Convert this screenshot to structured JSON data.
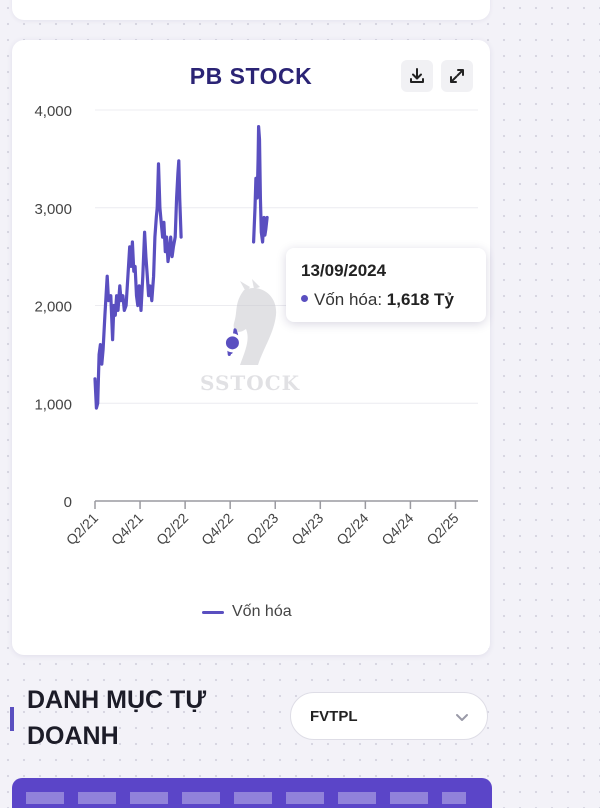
{
  "chart_data": {
    "type": "line",
    "title": "PB STOCK",
    "xlabel": "",
    "ylabel": "",
    "ylim": [
      0,
      4000
    ],
    "y_ticks": [
      "0",
      "1,000",
      "2,000",
      "3,000",
      "4,000"
    ],
    "y_tick_values": [
      0,
      1000,
      2000,
      3000,
      4000
    ],
    "x_ticks": [
      "Q2/21",
      "Q4/21",
      "Q2/22",
      "Q4/22",
      "Q2/23",
      "Q4/23",
      "Q2/24",
      "Q4/24",
      "Q2/25"
    ],
    "grid": true,
    "legend_position": "bottom",
    "series": [
      {
        "name": "Vốn hóa",
        "color": "#5a4fc0",
        "segments": [
          [
            [
              0.0,
              1250
            ],
            [
              0.03,
              950
            ],
            [
              0.06,
              1000
            ],
            [
              0.09,
              1500
            ],
            [
              0.12,
              1600
            ],
            [
              0.15,
              1400
            ],
            [
              0.18,
              1550
            ],
            [
              0.22,
              1900
            ],
            [
              0.27,
              2300
            ],
            [
              0.3,
              2050
            ],
            [
              0.35,
              2100
            ],
            [
              0.39,
              1650
            ],
            [
              0.42,
              2000
            ],
            [
              0.45,
              1900
            ],
            [
              0.48,
              2100
            ],
            [
              0.51,
              1950
            ],
            [
              0.55,
              2200
            ],
            [
              0.58,
              2050
            ],
            [
              0.62,
              2100
            ],
            [
              0.65,
              1950
            ],
            [
              0.69,
              2000
            ],
            [
              0.73,
              2300
            ],
            [
              0.77,
              2600
            ],
            [
              0.8,
              2400
            ],
            [
              0.83,
              2650
            ],
            [
              0.86,
              2350
            ],
            [
              0.89,
              2400
            ],
            [
              0.92,
              2100
            ],
            [
              0.95,
              2000
            ],
            [
              0.98,
              2200
            ],
            [
              1.02,
              1950
            ],
            [
              1.06,
              2300
            ],
            [
              1.1,
              2750
            ],
            [
              1.13,
              2500
            ],
            [
              1.16,
              2300
            ],
            [
              1.19,
              2100
            ],
            [
              1.22,
              2200
            ],
            [
              1.26,
              2050
            ],
            [
              1.3,
              2300
            ],
            [
              1.33,
              2700
            ],
            [
              1.36,
              2900
            ],
            [
              1.38,
              3000
            ],
            [
              1.41,
              3450
            ],
            [
              1.44,
              3000
            ],
            [
              1.47,
              2850
            ],
            [
              1.5,
              2700
            ],
            [
              1.53,
              2850
            ],
            [
              1.56,
              2550
            ],
            [
              1.59,
              2700
            ],
            [
              1.62,
              2450
            ],
            [
              1.65,
              2550
            ],
            [
              1.68,
              2700
            ],
            [
              1.71,
              2500
            ],
            [
              1.74,
              2600
            ],
            [
              1.78,
              2700
            ],
            [
              1.81,
              3100
            ],
            [
              1.84,
              3350
            ],
            [
              1.86,
              3480
            ],
            [
              1.88,
              3100
            ],
            [
              1.91,
              2700
            ]
          ],
          [
            [
              2.96,
              1600
            ],
            [
              2.98,
              1500
            ],
            [
              3.0,
              1580
            ],
            [
              3.02,
              1520
            ],
            [
              3.05,
              1620
            ],
            [
              3.08,
              1650
            ],
            [
              3.11,
              1750
            ],
            [
              3.14,
              1700
            ]
          ],
          [
            [
              3.52,
              2650
            ],
            [
              3.55,
              3000
            ],
            [
              3.57,
              3300
            ],
            [
              3.6,
              3100
            ],
            [
              3.62,
              3500
            ],
            [
              3.63,
              3830
            ],
            [
              3.65,
              3700
            ],
            [
              3.67,
              3100
            ],
            [
              3.69,
              2750
            ],
            [
              3.72,
              2650
            ],
            [
              3.75,
              2900
            ],
            [
              3.77,
              2720
            ],
            [
              3.79,
              2780
            ],
            [
              3.82,
              2900
            ]
          ]
        ]
      }
    ],
    "tooltip": {
      "date": "13/09/2024",
      "series_label": "Vốn hóa:",
      "value_text": "1,618 Tỷ",
      "value": 1618,
      "x": 3.05
    }
  },
  "toolbar": {
    "download_icon": "download-icon",
    "expand_icon": "expand-icon"
  },
  "watermark": {
    "text": "SSTOCK"
  },
  "section": {
    "title": "DANH MỤC TỰ DOANH"
  },
  "dropdown": {
    "value": "FVTPL"
  },
  "colors": {
    "accent": "#5a4fc0",
    "title": "#2b2475",
    "banner": "#5b45c8"
  }
}
